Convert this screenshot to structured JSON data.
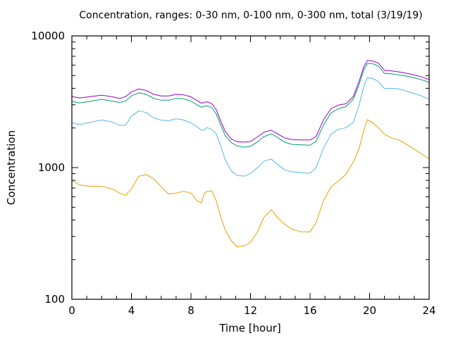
{
  "chart_data": {
    "type": "line",
    "title": "Concentration, ranges: 0-30 nm, 0-100 nm, 0-300 nm, total (3/19/19)",
    "xlabel": "Time [hour]",
    "ylabel": "Concentration",
    "xlim": [
      0,
      24
    ],
    "ylim": [
      100,
      10000
    ],
    "yscale": "log",
    "grid": false,
    "x_ticks": [
      0,
      4,
      8,
      12,
      16,
      20,
      24
    ],
    "x_tick_labels": [
      "0",
      "4",
      "8",
      "12",
      "16",
      "20",
      "24"
    ],
    "y_ticks": [
      100,
      1000,
      10000
    ],
    "y_tick_labels": [
      "100",
      "1000",
      "10000"
    ],
    "series": [
      {
        "name": "0-30 nm",
        "color": "#e69f00",
        "x": [
          0,
          0.5,
          1,
          2,
          2.7,
          3.2,
          3.6,
          4.0,
          4.5,
          5.0,
          5.5,
          6.0,
          6.5,
          7.0,
          7.5,
          8.0,
          8.4,
          8.7,
          8.9,
          9.1,
          9.4,
          9.7,
          10.0,
          10.3,
          10.7,
          11.1,
          11.6,
          12.0,
          12.5,
          12.9,
          13.4,
          13.8,
          14.3,
          14.8,
          15.4,
          16.0,
          16.4,
          16.9,
          17.4,
          17.9,
          18.4,
          18.9,
          19.3,
          19.6,
          19.85,
          20.2,
          20.6,
          21.0,
          21.5,
          22.0,
          22.5,
          23.0,
          23.5,
          24.0
        ],
        "y": [
          800,
          740,
          725,
          720,
          690,
          640,
          615,
          690,
          860,
          885,
          820,
          715,
          630,
          640,
          660,
          640,
          560,
          540,
          640,
          660,
          665,
          560,
          420,
          335,
          280,
          250,
          255,
          270,
          330,
          420,
          477,
          420,
          370,
          340,
          325,
          325,
          380,
          560,
          710,
          790,
          885,
          1100,
          1400,
          1900,
          2310,
          2200,
          2000,
          1790,
          1680,
          1610,
          1500,
          1380,
          1270,
          1160
        ]
      },
      {
        "name": "0-100 nm",
        "color": "#56b4e9",
        "x": [
          0,
          0.5,
          1,
          2,
          2.7,
          3.2,
          3.6,
          4.0,
          4.5,
          5.0,
          5.5,
          6.0,
          6.5,
          7.0,
          7.5,
          8.0,
          8.4,
          8.7,
          8.9,
          9.1,
          9.4,
          9.7,
          10.0,
          10.3,
          10.7,
          11.1,
          11.6,
          12.0,
          12.5,
          12.9,
          13.4,
          13.8,
          14.3,
          14.8,
          15.4,
          16.0,
          16.4,
          16.9,
          17.4,
          17.9,
          18.4,
          18.9,
          19.3,
          19.6,
          19.85,
          20.2,
          20.6,
          21.0,
          21.5,
          22.0,
          22.5,
          23.0,
          23.5,
          24.0
        ],
        "y": [
          2197,
          2120,
          2180,
          2300,
          2220,
          2090,
          2100,
          2450,
          2700,
          2620,
          2380,
          2290,
          2270,
          2350,
          2300,
          2180,
          2050,
          1920,
          1940,
          2010,
          1950,
          1800,
          1450,
          1150,
          950,
          870,
          862,
          900,
          1010,
          1120,
          1160,
          1060,
          960,
          930,
          915,
          905,
          1000,
          1400,
          1800,
          1950,
          2010,
          2200,
          3000,
          4100,
          4800,
          4750,
          4500,
          3970,
          4000,
          3950,
          3800,
          3650,
          3500,
          3300
        ]
      },
      {
        "name": "0-300 nm",
        "color": "#009e73",
        "x": [
          0,
          0.5,
          1,
          2,
          2.7,
          3.2,
          3.6,
          4.0,
          4.5,
          5.0,
          5.5,
          6.0,
          6.5,
          7.0,
          7.5,
          8.0,
          8.4,
          8.7,
          8.9,
          9.1,
          9.4,
          9.7,
          10.0,
          10.3,
          10.7,
          11.1,
          11.6,
          12.0,
          12.5,
          12.9,
          13.4,
          13.8,
          14.3,
          14.8,
          15.4,
          16.0,
          16.4,
          16.9,
          17.4,
          17.9,
          18.4,
          18.9,
          19.3,
          19.6,
          19.85,
          20.2,
          20.6,
          21.0,
          21.5,
          22.0,
          22.5,
          23.0,
          23.5,
          24.0
        ],
        "y": [
          3185,
          3100,
          3150,
          3300,
          3200,
          3120,
          3200,
          3500,
          3700,
          3600,
          3350,
          3250,
          3250,
          3350,
          3330,
          3200,
          3000,
          2870,
          2920,
          2950,
          2850,
          2550,
          2100,
          1750,
          1550,
          1460,
          1430,
          1450,
          1580,
          1720,
          1805,
          1700,
          1560,
          1500,
          1490,
          1480,
          1580,
          2100,
          2600,
          2800,
          2900,
          3300,
          4300,
          5500,
          6180,
          6150,
          5900,
          5190,
          5150,
          5050,
          4950,
          4800,
          4650,
          4430
        ]
      },
      {
        "name": "total",
        "color": "#9400d3",
        "x": [
          0,
          0.5,
          1,
          2,
          2.7,
          3.2,
          3.6,
          4.0,
          4.5,
          5.0,
          5.5,
          6.0,
          6.5,
          7.0,
          7.5,
          8.0,
          8.4,
          8.7,
          8.9,
          9.1,
          9.4,
          9.7,
          10.0,
          10.3,
          10.7,
          11.1,
          11.6,
          12.0,
          12.5,
          12.9,
          13.4,
          13.8,
          14.3,
          14.8,
          15.4,
          16.0,
          16.4,
          16.9,
          17.4,
          17.9,
          18.4,
          18.9,
          19.3,
          19.6,
          19.85,
          20.2,
          20.6,
          21.0,
          21.5,
          22.0,
          22.5,
          23.0,
          23.5,
          24.0
        ],
        "y": [
          3470,
          3380,
          3430,
          3550,
          3450,
          3350,
          3450,
          3750,
          3950,
          3850,
          3600,
          3500,
          3500,
          3600,
          3570,
          3450,
          3230,
          3080,
          3130,
          3160,
          3060,
          2750,
          2250,
          1880,
          1650,
          1570,
          1560,
          1580,
          1720,
          1860,
          1920,
          1810,
          1680,
          1630,
          1620,
          1620,
          1720,
          2300,
          2800,
          2980,
          3050,
          3450,
          4550,
          5800,
          6500,
          6450,
          6200,
          5470,
          5420,
          5320,
          5200,
          5050,
          4880,
          4660
        ]
      }
    ]
  }
}
